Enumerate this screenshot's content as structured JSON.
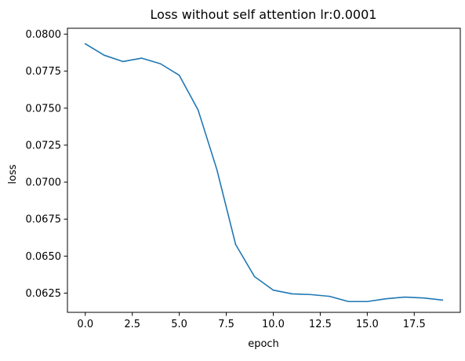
{
  "chart_data": {
    "type": "line",
    "title": "Loss without self attention lr:0.0001",
    "xlabel": "epoch",
    "ylabel": "loss",
    "xlim": [
      -0.95,
      19.95
    ],
    "ylim": [
      0.0612,
      0.0804
    ],
    "xticks": [
      0.0,
      2.5,
      5.0,
      7.5,
      10.0,
      12.5,
      15.0,
      17.5
    ],
    "xtick_labels": [
      "0.0",
      "2.5",
      "5.0",
      "7.5",
      "10.0",
      "12.5",
      "15.0",
      "17.5"
    ],
    "yticks": [
      0.0625,
      0.065,
      0.0675,
      0.07,
      0.0725,
      0.075,
      0.0775,
      0.08
    ],
    "ytick_labels": [
      "0.0625",
      "0.0650",
      "0.0675",
      "0.0700",
      "0.0725",
      "0.0750",
      "0.0775",
      "0.0800"
    ],
    "grid": false,
    "line_color": "#1f77b4",
    "series": [
      {
        "x": [
          0,
          1,
          2,
          3,
          4,
          5,
          6,
          7,
          8,
          9,
          10,
          11,
          12,
          13,
          14,
          15,
          16,
          17,
          18,
          19
        ],
        "values": [
          0.07935,
          0.07858,
          0.07815,
          0.07838,
          0.078,
          0.07722,
          0.07488,
          0.07085,
          0.06578,
          0.06362,
          0.0627,
          0.06245,
          0.0624,
          0.06228,
          0.06193,
          0.06193,
          0.06212,
          0.06223,
          0.06217,
          0.06203
        ]
      }
    ]
  }
}
